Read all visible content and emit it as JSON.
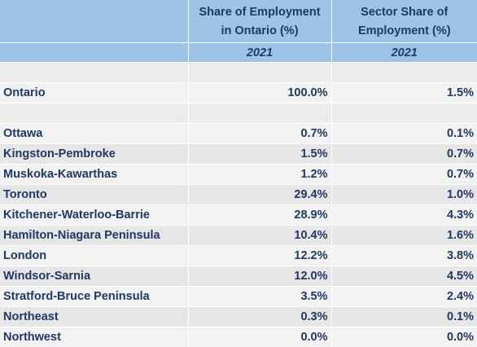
{
  "header": {
    "col2_line1": "Share of Employment",
    "col2_line2": "in Ontario (%)",
    "col3_line1": "Sector Share of",
    "col3_line2": "Employment (%)",
    "col2_year": "2021",
    "col3_year": "2021"
  },
  "total": {
    "label": "Ontario",
    "share": "100.0%",
    "sector": "1.5%"
  },
  "rows": [
    {
      "label": "Ottawa",
      "share": "0.7%",
      "sector": "0.1%"
    },
    {
      "label": "Kingston-Pembroke",
      "share": "1.5%",
      "sector": "0.7%"
    },
    {
      "label": "Muskoka-Kawarthas",
      "share": "1.2%",
      "sector": "0.7%"
    },
    {
      "label": "Toronto",
      "share": "29.4%",
      "sector": "1.0%"
    },
    {
      "label": "Kitchener-Waterloo-Barrie",
      "share": "28.9%",
      "sector": "4.3%"
    },
    {
      "label": "Hamilton-Niagara Peninsula",
      "share": "10.4%",
      "sector": "1.6%"
    },
    {
      "label": "London",
      "share": "12.2%",
      "sector": "3.8%"
    },
    {
      "label": "Windsor-Sarnia",
      "share": "12.0%",
      "sector": "4.5%"
    },
    {
      "label": "Stratford-Bruce Peninsula",
      "share": "3.5%",
      "sector": "2.4%"
    },
    {
      "label": "Northeast",
      "share": "0.3%",
      "sector": "0.1%"
    },
    {
      "label": "Northwest",
      "share": "0.0%",
      "sector": "0.0%"
    }
  ]
}
